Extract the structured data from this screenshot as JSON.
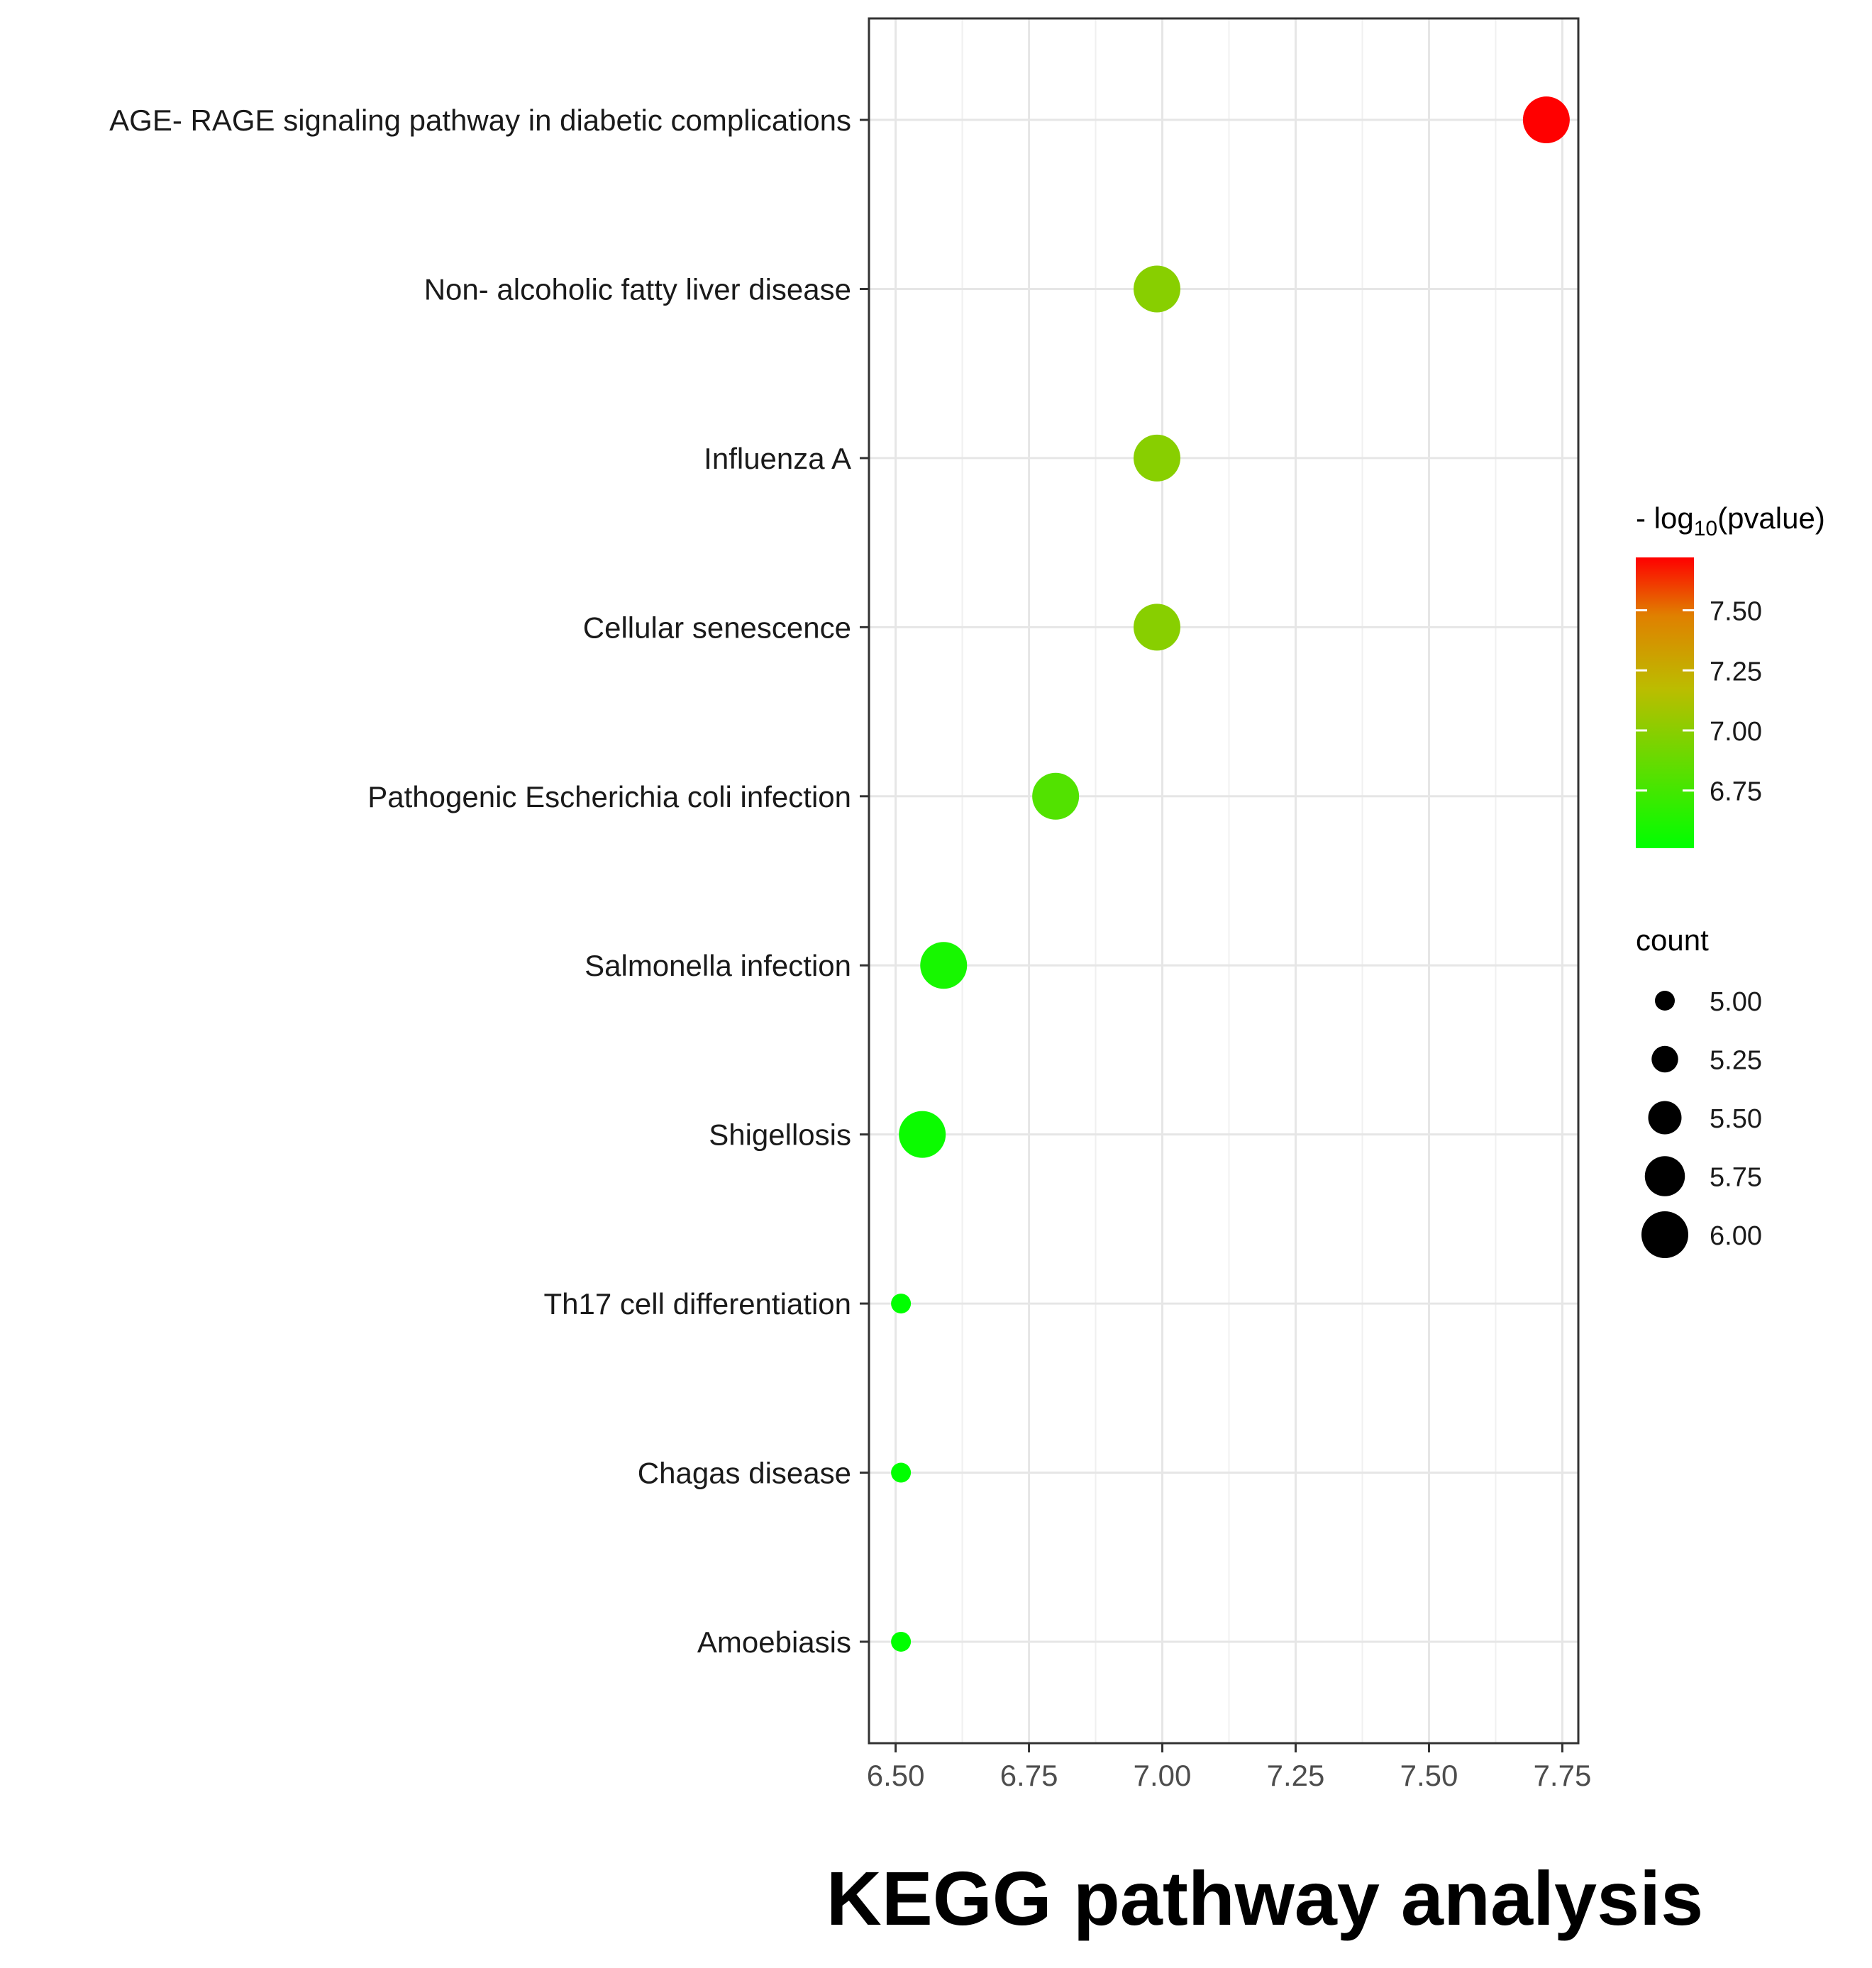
{
  "chart_data": {
    "type": "scatter",
    "title": "KEGG pathway analysis",
    "xlabel": "",
    "ylabel": "",
    "xlim": [
      6.45,
      7.78
    ],
    "x_ticks": [
      "6.50",
      "6.75",
      "7.00",
      "7.25",
      "7.50",
      "7.75"
    ],
    "x_tick_values": [
      6.5,
      6.75,
      7.0,
      7.25,
      7.5,
      7.75
    ],
    "grid": true,
    "categories": [
      "AGE- RAGE signaling pathway in diabetic complications",
      "Non- alcoholic fatty liver disease",
      "Influenza A",
      "Cellular senescence",
      "Pathogenic Escherichia coli infection",
      "Salmonella infection",
      "Shigellosis",
      "Th17 cell differentiation",
      "Chagas disease",
      "Amoebiasis"
    ],
    "points": [
      {
        "category": "AGE- RAGE signaling pathway in diabetic complications",
        "x": 7.72,
        "count": 6.0,
        "neg_log10_pvalue": 7.72
      },
      {
        "category": "Non- alcoholic fatty liver disease",
        "x": 6.99,
        "count": 6.0,
        "neg_log10_pvalue": 6.99
      },
      {
        "category": "Influenza A",
        "x": 6.99,
        "count": 6.0,
        "neg_log10_pvalue": 6.99
      },
      {
        "category": "Cellular senescence",
        "x": 6.99,
        "count": 6.0,
        "neg_log10_pvalue": 6.99
      },
      {
        "category": "Pathogenic Escherichia coli infection",
        "x": 6.8,
        "count": 6.0,
        "neg_log10_pvalue": 6.8
      },
      {
        "category": "Salmonella infection",
        "x": 6.59,
        "count": 6.0,
        "neg_log10_pvalue": 6.59
      },
      {
        "category": "Shigellosis",
        "x": 6.55,
        "count": 6.0,
        "neg_log10_pvalue": 6.55
      },
      {
        "category": "Th17 cell differentiation",
        "x": 6.51,
        "count": 5.0,
        "neg_log10_pvalue": 6.51
      },
      {
        "category": "Chagas disease",
        "x": 6.51,
        "count": 5.0,
        "neg_log10_pvalue": 6.51
      },
      {
        "category": "Amoebiasis",
        "x": 6.51,
        "count": 5.0,
        "neg_log10_pvalue": 6.51
      }
    ],
    "color_legend": {
      "title_prefix": "- log",
      "title_sub": "10",
      "title_suffix": "(pvalue)",
      "min": 6.51,
      "max": 7.72,
      "low_color": "#00ff00",
      "high_color": "#ff0000",
      "ticks": [
        "7.50",
        "7.25",
        "7.00",
        "6.75"
      ],
      "tick_values": [
        7.5,
        7.25,
        7.0,
        6.75
      ]
    },
    "size_legend": {
      "title": "count",
      "labels": [
        "5.00",
        "5.25",
        "5.50",
        "5.75",
        "6.00"
      ],
      "values": [
        5.0,
        5.25,
        5.5,
        5.75,
        6.0
      ]
    }
  }
}
